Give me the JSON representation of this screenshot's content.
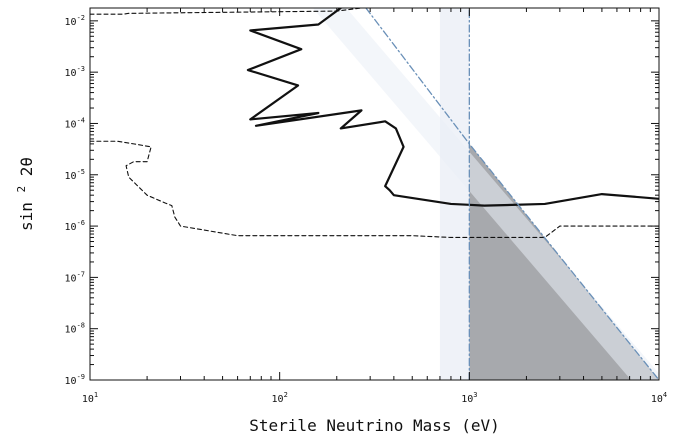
{
  "chart_data": {
    "type": "line",
    "xlabel": "Sterile Neutrino Mass (eV)",
    "ylabel_base": "sin",
    "ylabel_sup": "2",
    "ylabel_theta": " 2θ",
    "x_scale": "log",
    "y_scale": "log",
    "xlim": [
      10,
      10000
    ],
    "ylim": [
      1e-09,
      0.0178
    ],
    "x_ticks": [
      {
        "value": 10,
        "base": "10",
        "exp": "1"
      },
      {
        "value": 100,
        "base": "10",
        "exp": "2"
      },
      {
        "value": 1000,
        "base": "10",
        "exp": "3"
      },
      {
        "value": 10000,
        "base": "10",
        "exp": "4"
      }
    ],
    "y_ticks": [
      {
        "value": 1e-09,
        "base": "10",
        "exp": "-9"
      },
      {
        "value": 1e-08,
        "base": "10",
        "exp": "-8"
      },
      {
        "value": 1e-07,
        "base": "10",
        "exp": "-7"
      },
      {
        "value": 1e-06,
        "base": "10",
        "exp": "-6"
      },
      {
        "value": 1e-05,
        "base": "10",
        "exp": "-5"
      },
      {
        "value": 0.0001,
        "base": "10",
        "exp": "-4"
      },
      {
        "value": 0.001,
        "base": "10",
        "exp": "-3"
      },
      {
        "value": 0.01,
        "base": "10",
        "exp": "-2"
      }
    ],
    "grid": false,
    "colors": {
      "solid_curve": "#111111",
      "dashed_curve": "#111111",
      "band_fill": "#e9eef6",
      "excluded_region": "#8e9196",
      "dashdot_line": "#6a90b8"
    },
    "series": [
      {
        "style": "solid",
        "x": [
          210,
          160,
          70,
          130,
          68,
          125,
          70,
          160,
          75,
          270,
          210,
          360,
          410,
          450,
          360,
          380,
          400,
          800,
          1000,
          1200,
          2500,
          5000,
          10000
        ],
        "y": [
          0.0178,
          0.0085,
          0.0065,
          0.0028,
          0.0011,
          0.00055,
          0.00012,
          0.00016,
          9e-05,
          0.00018,
          8e-05,
          0.00011,
          8e-05,
          3.5e-05,
          6e-06,
          5e-06,
          4e-06,
          2.7e-06,
          2.6e-06,
          2.5e-06,
          2.7e-06,
          4.2e-06,
          3.4e-06
        ]
      },
      {
        "style": "dashed",
        "x": [
          10000,
          3000,
          2500,
          1500,
          1000,
          800,
          500,
          300,
          150,
          60,
          30,
          28,
          27,
          25,
          20,
          16,
          15.5,
          17,
          20,
          21,
          17,
          14,
          10
        ],
        "y": [
          1e-06,
          1e-06,
          6e-07,
          6e-07,
          6e-07,
          6e-07,
          6.5e-07,
          6.5e-07,
          6.5e-07,
          6.5e-07,
          1e-06,
          1.5e-06,
          2.5e-06,
          2.8e-06,
          4e-06,
          9e-06,
          1.5e-05,
          1.8e-05,
          1.8e-05,
          3.5e-05,
          4e-05,
          4.5e-05,
          4.5e-05
        ]
      },
      {
        "style": "dashed",
        "x": [
          10,
          15,
          16,
          200,
          270
        ],
        "y": [
          0.0135,
          0.0135,
          0.014,
          0.0155,
          0.0178
        ]
      },
      {
        "style": "dashdot",
        "x": [
          285,
          1000,
          10000
        ],
        "y": [
          0.0178,
          4e-05,
          1e-09
        ]
      },
      {
        "style": "dashdot-vertical",
        "x": [
          1000,
          1000
        ],
        "y": [
          1e-09,
          0.0178
        ]
      }
    ],
    "regions": [
      {
        "kind": "excluded-triangle",
        "x": [
          1000,
          1000,
          10000
        ],
        "y": [
          4e-05,
          1e-09,
          1e-09
        ]
      },
      {
        "kind": "vertical-band",
        "x": [
          700,
          1000
        ]
      },
      {
        "kind": "diagonal-band",
        "x": [
          210,
          10000
        ],
        "y": [
          0.0178,
          1e-09
        ]
      }
    ]
  }
}
